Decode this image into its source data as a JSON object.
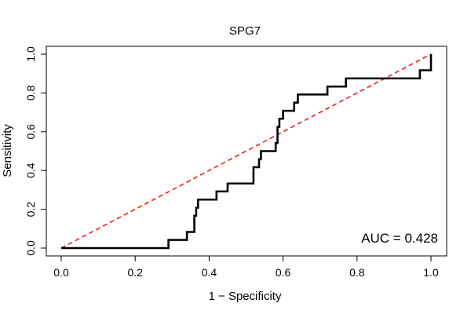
{
  "chart_data": {
    "type": "line",
    "title": "SPG7",
    "xlabel": "1 − Specificity",
    "ylabel": "Sensitivity",
    "xlim": [
      0,
      1
    ],
    "ylim": [
      0,
      1
    ],
    "x_ticks": [
      "0.0",
      "0.2",
      "0.4",
      "0.6",
      "0.8",
      "1.0"
    ],
    "y_ticks": [
      "0.0",
      "0.2",
      "0.4",
      "0.6",
      "0.8",
      "1.0"
    ],
    "annotation": "AUC = 0.428",
    "grid": false,
    "series": [
      {
        "name": "ROC curve",
        "color": "#000000",
        "style": "solid",
        "x": [
          0.0,
          0.29,
          0.29,
          0.34,
          0.34,
          0.36,
          0.36,
          0.365,
          0.365,
          0.37,
          0.37,
          0.38,
          0.38,
          0.42,
          0.42,
          0.45,
          0.45,
          0.52,
          0.52,
          0.535,
          0.535,
          0.54,
          0.54,
          0.55,
          0.55,
          0.58,
          0.58,
          0.585,
          0.585,
          0.59,
          0.59,
          0.6,
          0.6,
          0.61,
          0.61,
          0.63,
          0.63,
          0.64,
          0.64,
          0.72,
          0.72,
          0.77,
          0.77,
          0.97,
          0.97,
          1.0,
          1.0
        ],
        "y": [
          0.0,
          0.0,
          0.042,
          0.042,
          0.083,
          0.083,
          0.167,
          0.167,
          0.208,
          0.208,
          0.25,
          0.25,
          0.25,
          0.25,
          0.292,
          0.292,
          0.333,
          0.333,
          0.417,
          0.417,
          0.458,
          0.458,
          0.5,
          0.5,
          0.5,
          0.5,
          0.542,
          0.542,
          0.625,
          0.625,
          0.667,
          0.667,
          0.708,
          0.708,
          0.708,
          0.708,
          0.75,
          0.75,
          0.792,
          0.792,
          0.833,
          0.833,
          0.875,
          0.875,
          0.917,
          0.917,
          1.0
        ]
      },
      {
        "name": "Chance diagonal",
        "color": "#e8211c",
        "style": "dashed",
        "x": [
          0,
          1
        ],
        "y": [
          0,
          1
        ]
      }
    ]
  }
}
